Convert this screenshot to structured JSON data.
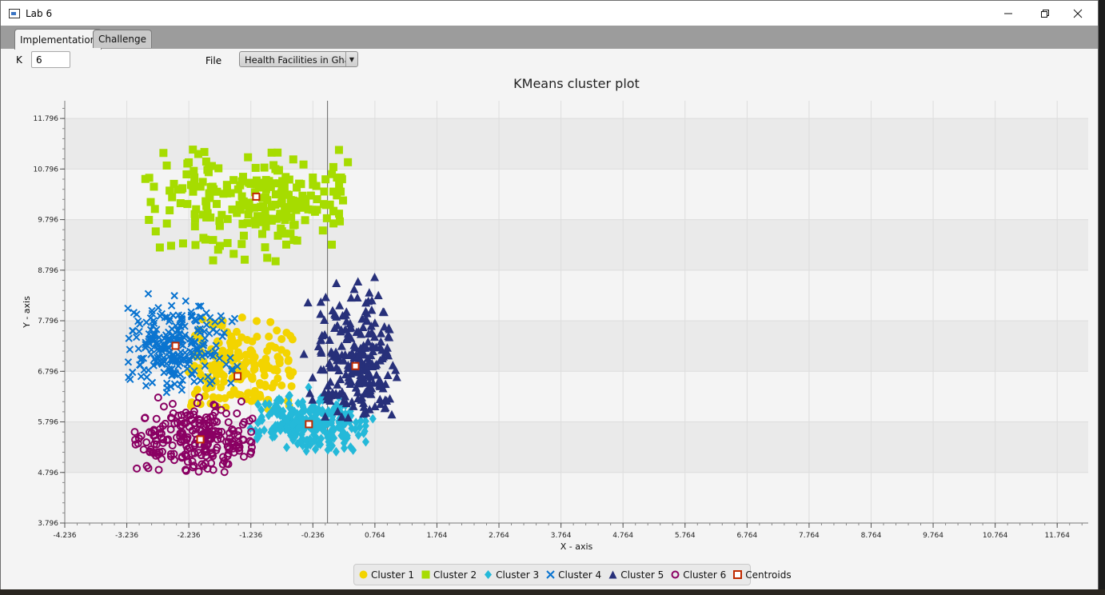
{
  "window": {
    "title": "Lab 6",
    "controls": [
      "minimize",
      "restore",
      "close"
    ]
  },
  "tabs": [
    {
      "label": "Implementation",
      "active": true
    },
    {
      "label": "Challenge",
      "active": false
    }
  ],
  "controls": {
    "k_label": "K",
    "k_value": "6",
    "file_label": "File",
    "file_value": "Health Facilities in Ghan"
  },
  "chart_data": {
    "type": "scatter",
    "title": "KMeans cluster plot",
    "xlabel": "X - axis",
    "ylabel": "Y - axis",
    "xlim": [
      -4.236,
      12.264
    ],
    "ylim": [
      3.796,
      12.146
    ],
    "xticks": [
      "-4.236",
      "-3.236",
      "-2.236",
      "-1.236",
      "-0.236",
      "0.764",
      "1.764",
      "2.764",
      "3.764",
      "4.764",
      "5.764",
      "6.764",
      "7.764",
      "8.764",
      "9.764",
      "10.764",
      "11.764"
    ],
    "yticks": [
      "3.796",
      "4.796",
      "5.796",
      "6.796",
      "7.796",
      "8.796",
      "9.796",
      "10.796",
      "11.796"
    ],
    "zero_line_x": 0,
    "grid": true,
    "legend_position": "bottom",
    "series": [
      {
        "name": "Cluster 1",
        "marker": "circle",
        "color": "#f3d400",
        "centroid": [
          -1.45,
          6.7
        ],
        "spread": [
          0.55,
          0.5
        ],
        "bounds": {
          "x": [
            -2.25,
            -0.55
          ],
          "y": [
            6.05,
            8.05
          ]
        }
      },
      {
        "name": "Cluster 2",
        "marker": "square",
        "color": "#a6dc00",
        "centroid": [
          -1.15,
          10.25
        ],
        "spread": [
          0.95,
          0.55
        ],
        "bounds": {
          "x": [
            -2.95,
            0.35
          ],
          "y": [
            8.85,
            11.2
          ]
        }
      },
      {
        "name": "Cluster 3",
        "marker": "diamond",
        "color": "#24b9d9",
        "centroid": [
          -0.3,
          5.75
        ],
        "spread": [
          0.45,
          0.28
        ],
        "bounds": {
          "x": [
            -1.25,
            0.75
          ],
          "y": [
            5.2,
            6.6
          ]
        }
      },
      {
        "name": "Cluster 4",
        "marker": "cross",
        "color": "#0a74d0",
        "centroid": [
          -2.45,
          7.3
        ],
        "spread": [
          0.42,
          0.45
        ],
        "bounds": {
          "x": [
            -3.3,
            -1.3
          ],
          "y": [
            6.3,
            8.6
          ]
        }
      },
      {
        "name": "Cluster 5",
        "marker": "triangle",
        "color": "#27307a",
        "centroid": [
          0.45,
          6.9
        ],
        "spread": [
          0.35,
          0.7
        ],
        "bounds": {
          "x": [
            -0.45,
            1.2
          ],
          "y": [
            5.85,
            8.85
          ]
        }
      },
      {
        "name": "Cluster 6",
        "marker": "ring",
        "color": "#8a0063",
        "centroid": [
          -2.05,
          5.45
        ],
        "spread": [
          0.55,
          0.35
        ],
        "bounds": {
          "x": [
            -3.15,
            -1.2
          ],
          "y": [
            4.8,
            6.3
          ]
        }
      }
    ],
    "centroids": {
      "name": "Centroids",
      "marker": "open-square",
      "color": "#c02a00",
      "points": [
        [
          -1.45,
          6.7
        ],
        [
          -1.15,
          10.25
        ],
        [
          -0.3,
          5.75
        ],
        [
          -2.45,
          7.3
        ],
        [
          0.45,
          6.9
        ],
        [
          -2.05,
          5.45
        ]
      ]
    }
  }
}
